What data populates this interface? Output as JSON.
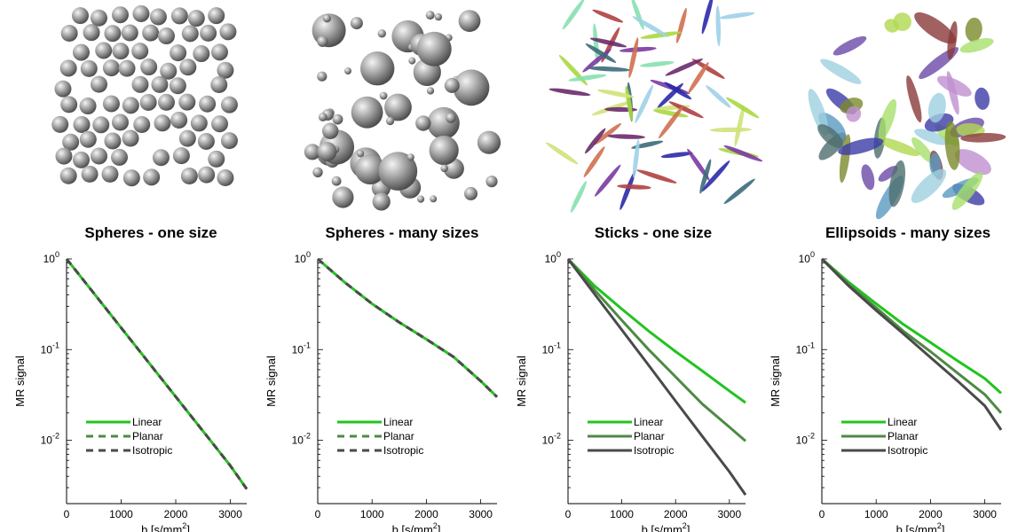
{
  "panels": [
    {
      "title": "Spheres - one size",
      "illustration": "spheres-one-size-icon"
    },
    {
      "title": "Spheres - many sizes",
      "illustration": "spheres-many-sizes-icon"
    },
    {
      "title": "Sticks - one size",
      "illustration": "sticks-one-size-icon"
    },
    {
      "title": "Ellipsoids - many sizes",
      "illustration": "ellipsoids-many-sizes-icon"
    }
  ],
  "colors": {
    "linear": "#22c41e",
    "planar": "#4e8a44",
    "isotropic": "#4a4a4a",
    "sphere": "#a8a8a8"
  },
  "chart_data": [
    {
      "type": "line",
      "title": "Spheres - one size",
      "xlabel": "b [s/mm²]",
      "ylabel": "MR signal",
      "yscale": "log",
      "xlim": [
        0,
        3300
      ],
      "ylim": [
        0.002,
        1
      ],
      "xticks": [
        0,
        1000,
        2000,
        3000
      ],
      "yticks": [
        1,
        0.1,
        0.01
      ],
      "yticklabels": [
        {
          "base": "10",
          "exp": "0"
        },
        {
          "base": "10",
          "exp": "-1"
        },
        {
          "base": "10",
          "exp": "-2"
        }
      ],
      "legend": "bottom-left",
      "series": [
        {
          "name": "Linear",
          "dashed": false,
          "x": [
            0,
            500,
            1000,
            1500,
            2000,
            2500,
            3000,
            3300
          ],
          "y": [
            1.0,
            0.417,
            0.174,
            0.0724,
            0.0302,
            0.0126,
            0.00524,
            0.0029
          ]
        },
        {
          "name": "Planar",
          "dashed": true,
          "x": [
            0,
            500,
            1000,
            1500,
            2000,
            2500,
            3000,
            3300
          ],
          "y": [
            1.0,
            0.417,
            0.174,
            0.0724,
            0.0302,
            0.0126,
            0.00524,
            0.0029
          ]
        },
        {
          "name": "Isotropic",
          "dashed": true,
          "x": [
            0,
            500,
            1000,
            1500,
            2000,
            2500,
            3000,
            3300
          ],
          "y": [
            1.0,
            0.417,
            0.174,
            0.0724,
            0.0302,
            0.0126,
            0.00524,
            0.0029
          ]
        }
      ]
    },
    {
      "type": "line",
      "title": "Spheres - many sizes",
      "xlabel": "b [s/mm²]",
      "ylabel": "MR signal",
      "yscale": "log",
      "xlim": [
        0,
        3300
      ],
      "ylim": [
        0.002,
        1
      ],
      "xticks": [
        0,
        1000,
        2000,
        3000
      ],
      "yticks": [
        1,
        0.1,
        0.01
      ],
      "yticklabels": [
        {
          "base": "10",
          "exp": "0"
        },
        {
          "base": "10",
          "exp": "-1"
        },
        {
          "base": "10",
          "exp": "-2"
        }
      ],
      "legend": "bottom-left",
      "series": [
        {
          "name": "Linear",
          "dashed": false,
          "x": [
            0,
            500,
            1000,
            1500,
            2000,
            2500,
            3000,
            3300
          ],
          "y": [
            1.0,
            0.55,
            0.32,
            0.2,
            0.13,
            0.083,
            0.045,
            0.03
          ]
        },
        {
          "name": "Planar",
          "dashed": true,
          "x": [
            0,
            500,
            1000,
            1500,
            2000,
            2500,
            3000,
            3300
          ],
          "y": [
            1.0,
            0.55,
            0.32,
            0.2,
            0.13,
            0.083,
            0.045,
            0.03
          ]
        },
        {
          "name": "Isotropic",
          "dashed": true,
          "x": [
            0,
            500,
            1000,
            1500,
            2000,
            2500,
            3000,
            3300
          ],
          "y": [
            1.0,
            0.55,
            0.32,
            0.2,
            0.13,
            0.083,
            0.045,
            0.03
          ]
        }
      ]
    },
    {
      "type": "line",
      "title": "Sticks - one size",
      "xlabel": "b [s/mm²]",
      "ylabel": "MR signal",
      "yscale": "log",
      "xlim": [
        0,
        3300
      ],
      "ylim": [
        0.002,
        1
      ],
      "xticks": [
        0,
        1000,
        2000,
        3000
      ],
      "yticks": [
        1,
        0.1,
        0.01
      ],
      "yticklabels": [
        {
          "base": "10",
          "exp": "0"
        },
        {
          "base": "10",
          "exp": "-1"
        },
        {
          "base": "10",
          "exp": "-2"
        }
      ],
      "legend": "bottom-left",
      "series": [
        {
          "name": "Linear",
          "dashed": false,
          "x": [
            0,
            500,
            1000,
            1500,
            2000,
            2500,
            3000,
            3300
          ],
          "y": [
            1.0,
            0.5,
            0.28,
            0.16,
            0.095,
            0.058,
            0.035,
            0.026
          ]
        },
        {
          "name": "Planar",
          "dashed": false,
          "x": [
            0,
            500,
            1000,
            1500,
            2000,
            2500,
            3000,
            3300
          ],
          "y": [
            1.0,
            0.45,
            0.21,
            0.1,
            0.05,
            0.025,
            0.014,
            0.0098
          ]
        },
        {
          "name": "Isotropic",
          "dashed": false,
          "x": [
            0,
            500,
            1000,
            1500,
            2000,
            2500,
            3000,
            3300
          ],
          "y": [
            1.0,
            0.405,
            0.165,
            0.067,
            0.027,
            0.011,
            0.0045,
            0.0025
          ]
        }
      ]
    },
    {
      "type": "line",
      "title": "Ellipsoids - many sizes",
      "xlabel": "b [s/mm²]",
      "ylabel": "MR signal",
      "yscale": "log",
      "xlim": [
        0,
        3300
      ],
      "ylim": [
        0.002,
        1
      ],
      "xticks": [
        0,
        1000,
        2000,
        3000
      ],
      "yticks": [
        1,
        0.1,
        0.01
      ],
      "yticklabels": [
        {
          "base": "10",
          "exp": "0"
        },
        {
          "base": "10",
          "exp": "-1"
        },
        {
          "base": "10",
          "exp": "-2"
        }
      ],
      "legend": "bottom-left",
      "series": [
        {
          "name": "Linear",
          "dashed": false,
          "x": [
            0,
            500,
            1000,
            1500,
            2000,
            2500,
            3000,
            3300
          ],
          "y": [
            1.0,
            0.55,
            0.32,
            0.19,
            0.12,
            0.075,
            0.048,
            0.033
          ]
        },
        {
          "name": "Planar",
          "dashed": false,
          "x": [
            0,
            500,
            1000,
            1500,
            2000,
            2500,
            3000,
            3300
          ],
          "y": [
            1.0,
            0.52,
            0.29,
            0.16,
            0.095,
            0.055,
            0.032,
            0.02
          ]
        },
        {
          "name": "Isotropic",
          "dashed": false,
          "x": [
            0,
            500,
            1000,
            1500,
            2000,
            2500,
            3000,
            3300
          ],
          "y": [
            1.0,
            0.5,
            0.27,
            0.15,
            0.082,
            0.045,
            0.024,
            0.013
          ]
        }
      ]
    }
  ]
}
